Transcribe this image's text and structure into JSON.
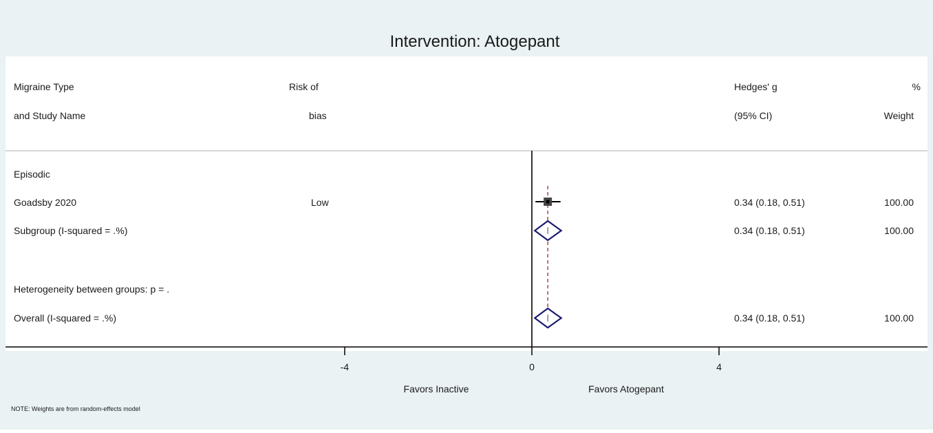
{
  "colors": {
    "background": "#eaf2f3",
    "plot_region": "#ffffff",
    "title": "#1f3a66",
    "diamond": "#1a1a6e",
    "pooled_line": "#8b1a1a",
    "text": "#1a1a1a"
  },
  "header": {
    "title": "Intervention: Atogepant",
    "col_study_line1": "Migraine Type",
    "col_study_line2": "and Study Name",
    "col_rob_line1": "Risk of",
    "col_rob_line2": "bias",
    "col_es_line1": "Hedges' g",
    "col_es_line2": "(95% CI)",
    "col_w_line1": "%",
    "col_w_line2": "Weight"
  },
  "rows": [
    {
      "kind": "group",
      "label": "Episodic"
    },
    {
      "kind": "study",
      "label": "Goadsby 2020",
      "rob": "Low",
      "es": 0.34,
      "lo": 0.18,
      "hi": 0.51,
      "ci_text": "0.34 (0.18, 0.51)",
      "weight": "100.00"
    },
    {
      "kind": "subtotal",
      "label": "Subgroup (I-squared = .%)",
      "es": 0.34,
      "lo": 0.18,
      "hi": 0.51,
      "ci_text": "0.34 (0.18, 0.51)",
      "weight": "100.00"
    },
    {
      "kind": "spacer"
    },
    {
      "kind": "note",
      "label": "Heterogeneity between groups: p = ."
    },
    {
      "kind": "overall",
      "label": "Overall (I-squared = .%)",
      "es": 0.34,
      "lo": 0.18,
      "hi": 0.51,
      "ci_text": "0.34 (0.18, 0.51)",
      "weight": "100.00"
    }
  ],
  "axis": {
    "ticks": [
      -4,
      0,
      4
    ],
    "tick_labels": [
      "-4",
      "0",
      "4"
    ],
    "left_label": "Favors Inactive",
    "right_label": "Favors Atogepant",
    "null_value": 0,
    "pooled_value": 0.34
  },
  "footer": {
    "note": "NOTE: Weights are from random-effects model"
  },
  "chart_data": {
    "type": "forest",
    "title": "Intervention: Atogepant",
    "xlabel_left": "Favors Inactive",
    "xlabel_right": "Favors Atogepant",
    "effect_measure": "Hedges' g",
    "xticks": [
      -4,
      0,
      4
    ],
    "null_line": 0,
    "studies": [
      {
        "label": "Goadsby 2020",
        "group": "Episodic",
        "risk_of_bias": "Low",
        "es": 0.34,
        "ci": [
          0.18,
          0.51
        ],
        "weight": 100.0
      }
    ],
    "subtotals": [
      {
        "label": "Subgroup (I-squared = .%)",
        "group": "Episodic",
        "es": 0.34,
        "ci": [
          0.18,
          0.51
        ],
        "weight": 100.0
      }
    ],
    "overall": {
      "label": "Overall (I-squared = .%)",
      "es": 0.34,
      "ci": [
        0.18,
        0.51
      ],
      "weight": 100.0
    },
    "heterogeneity_between_groups": "p = ."
  }
}
